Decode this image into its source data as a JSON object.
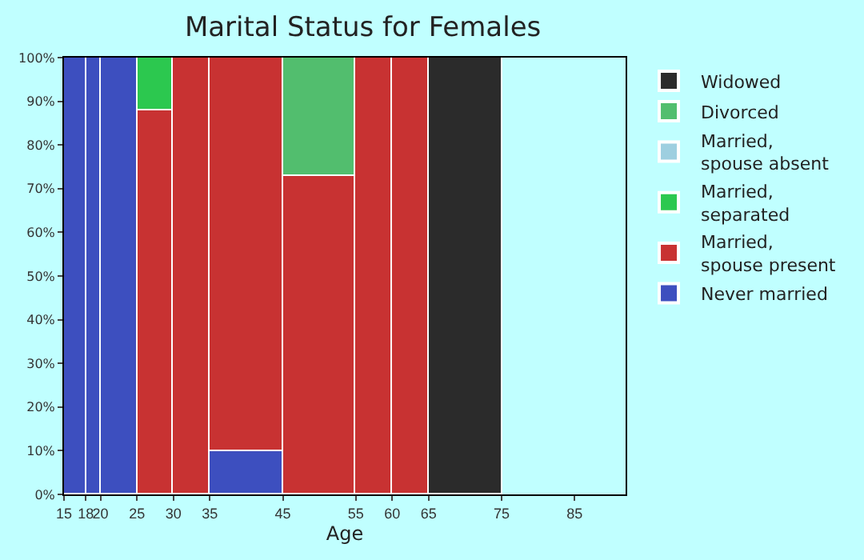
{
  "chart_data": {
    "type": "bar",
    "stacked": true,
    "title": "Marital Status for Females",
    "xlabel": "Age",
    "x": [
      16.5,
      19,
      22.5,
      27.5,
      32.5,
      40,
      50,
      57.5,
      62.5,
      70
    ],
    "xlim": [
      15,
      92
    ],
    "xticks": [
      15,
      18,
      20,
      25,
      30,
      35,
      45,
      55,
      60,
      65,
      75,
      85
    ],
    "ylim": [
      0,
      100
    ],
    "yticks": [
      {
        "value": 0,
        "label": "0%"
      },
      {
        "value": 10,
        "label": "10%"
      },
      {
        "value": 20,
        "label": "20%"
      },
      {
        "value": 30,
        "label": "30%"
      },
      {
        "value": 40,
        "label": "40%"
      },
      {
        "value": 50,
        "label": "50%"
      },
      {
        "value": 60,
        "label": "60%"
      },
      {
        "value": 70,
        "label": "70%"
      },
      {
        "value": 80,
        "label": "80%"
      },
      {
        "value": 90,
        "label": "90%"
      },
      {
        "value": 100,
        "label": "100%"
      }
    ],
    "grid": false,
    "legend": "right",
    "series": [
      {
        "name": "Never married",
        "color": "#3d4fbf",
        "values": [
          100,
          100,
          100,
          0,
          0,
          10,
          0,
          0,
          0,
          0
        ]
      },
      {
        "name": "Married,\nspouse present",
        "color": "#c83232",
        "values": [
          0,
          0,
          0,
          88,
          100,
          90,
          73,
          100,
          100,
          0
        ]
      },
      {
        "name": "Married,\nseparated",
        "color": "#2cc84f",
        "values": [
          0,
          0,
          0,
          12,
          0,
          0,
          0,
          0,
          0,
          0
        ]
      },
      {
        "name": "Married,\nspouse absent",
        "color": "#9ecfe0",
        "values": [
          0,
          0,
          0,
          0,
          0,
          0,
          0,
          0,
          0,
          0
        ]
      },
      {
        "name": "Divorced",
        "color": "#52be6e",
        "values": [
          0,
          0,
          0,
          0,
          0,
          0,
          27,
          0,
          0,
          0
        ]
      },
      {
        "name": "Widowed",
        "color": "#2b2b2b",
        "values": [
          0,
          0,
          0,
          0,
          0,
          0,
          0,
          0,
          0,
          100
        ]
      }
    ]
  }
}
